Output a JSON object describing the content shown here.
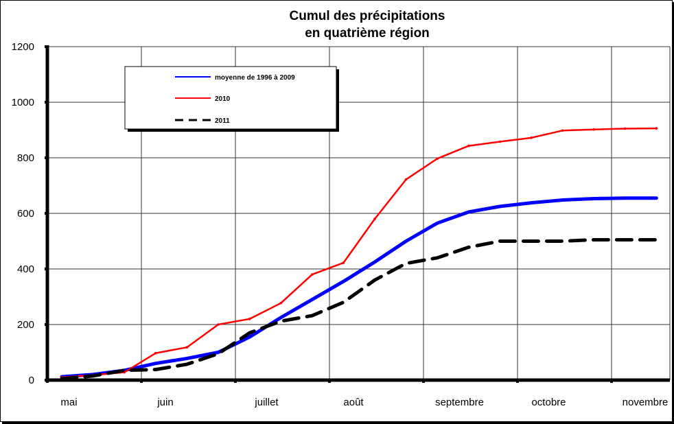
{
  "chart_data": {
    "type": "line",
    "title": [
      "Cumul des précipitations",
      "en quatrième région"
    ],
    "xlabel": "",
    "ylabel": "",
    "ylim": [
      0,
      1200
    ],
    "yticks": [
      0,
      200,
      400,
      600,
      800,
      1000,
      1200
    ],
    "month_labels": [
      "mai",
      "juin",
      "juillet",
      "août",
      "septembre",
      "octobre",
      "novembre"
    ],
    "x_unit": "décade (10-day period) index from early May",
    "x": [
      0,
      1,
      2,
      3,
      4,
      5,
      6,
      7,
      8,
      9,
      10,
      11,
      12,
      13,
      14,
      15,
      16,
      17,
      18,
      19
    ],
    "grid": true,
    "legend_position": "top-left",
    "series": [
      {
        "name": "moyenne de 1996 à 2009",
        "color": "#0000ff",
        "style": "solid",
        "values": [
          12,
          20,
          35,
          60,
          78,
          100,
          155,
          225,
          290,
          355,
          425,
          500,
          565,
          605,
          625,
          638,
          648,
          653,
          655,
          655
        ]
      },
      {
        "name": "2010",
        "color": "#ff0000",
        "style": "solid",
        "values": [
          10,
          18,
          28,
          97,
          118,
          200,
          220,
          277,
          380,
          422,
          580,
          722,
          797,
          843,
          858,
          872,
          898,
          902,
          905,
          906
        ]
      },
      {
        "name": "2011",
        "color": "#000000",
        "style": "dashed",
        "values": [
          5,
          15,
          35,
          38,
          57,
          95,
          170,
          212,
          232,
          280,
          360,
          420,
          440,
          478,
          500,
          500,
          500,
          505,
          505,
          505
        ]
      }
    ]
  }
}
